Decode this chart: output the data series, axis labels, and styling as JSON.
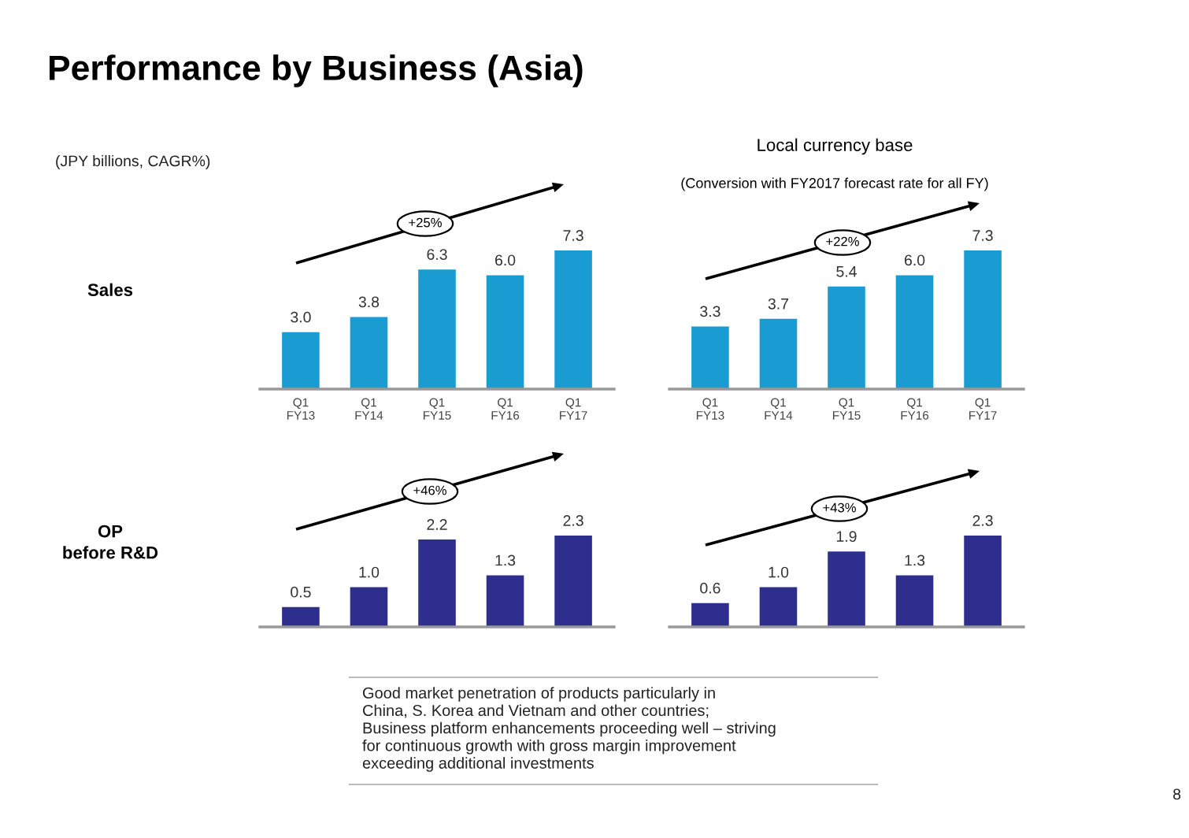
{
  "chart_data": [
    {
      "type": "bar",
      "title": "Performance by Business (Asia)",
      "ylabel": "Sales",
      "categories": [
        "Q1\nFY13",
        "Q1\nFY14",
        "Q1\nFY15",
        "Q1\nFY16",
        "Q1\nFY17"
      ],
      "values": [
        3.0,
        3.8,
        6.3,
        6.0,
        7.3
      ],
      "color": "#1a9bd1",
      "value_labels": [
        "3.0",
        "3.8",
        "6.3",
        "6.0",
        "7.3"
      ],
      "annotations": [
        "+25%",
        "(JPY billions, CAGR%)"
      ]
    },
    {
      "type": "bar",
      "title": "Local currency base",
      "subtitle": "(Conversion with FY2017 forecast rate for all FY)",
      "categories": [
        "Q1\nFY13",
        "Q1\nFY14",
        "Q1\nFY15",
        "Q1\nFY16",
        "Q1\nFY17"
      ],
      "values": [
        3.3,
        3.7,
        5.4,
        6.0,
        7.3
      ],
      "color": "#1a9bd1",
      "value_labels": [
        "3.3",
        "3.7",
        "5.4",
        "6.0",
        "7.3"
      ],
      "annotations": [
        "+22%"
      ]
    },
    {
      "type": "bar",
      "ylabel": "OP\nbefore R&D",
      "categories": [
        null,
        null,
        null,
        null,
        null
      ],
      "values": [
        0.5,
        1.0,
        2.2,
        1.3,
        2.3
      ],
      "color": "#2e2e8f",
      "value_labels": [
        "0.5",
        "1.0",
        "2.2",
        "1.3",
        "2.3"
      ],
      "annotations": [
        "+46%",
        "Good market penetration of products particularly in\nChina, S. Korea and Vietnam and other countries;\nBusiness platform enhancements proceeding well – striving\nfor continuous growth with gross margin improvement\nexceeding additional investments"
      ]
    },
    {
      "type": "bar",
      "categories": [
        null,
        null,
        null,
        null,
        null
      ],
      "values": [
        0.6,
        1.0,
        1.9,
        1.3,
        2.3
      ],
      "color": "#2e2e8f",
      "value_labels": [
        "0.6",
        "1.0",
        "1.9",
        "1.3",
        "2.3"
      ],
      "annotations": [
        "+43%",
        "8"
      ]
    }
  ]
}
